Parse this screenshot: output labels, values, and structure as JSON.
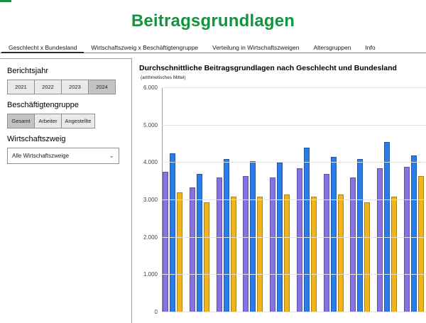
{
  "page": {
    "title": "Beitragsgrundlagen"
  },
  "colors": {
    "title_green": "#15933f",
    "selected_button_bg": "#c3c3c3",
    "series_purple": "#8672e0",
    "series_blue": "#2b7ce9",
    "series_yellow": "#f0b41e"
  },
  "tabs": {
    "items": [
      {
        "label": "Geschlecht x Bundesland",
        "active": true
      },
      {
        "label": "Wirtschaftszweig x Beschäftigtengruppe",
        "active": false
      },
      {
        "label": "Verteilung in Wirtschaftszweigen",
        "active": false
      },
      {
        "label": "Altersgruppen",
        "active": false
      },
      {
        "label": "Info",
        "active": false
      }
    ]
  },
  "sidebar": {
    "berichtsjahr": {
      "label": "Berichtsjahr",
      "options": [
        "2021",
        "2022",
        "2023",
        "2024"
      ],
      "selected": "2024"
    },
    "beschaeftigtengruppe": {
      "label": "Beschäftigtengruppe",
      "options": [
        "Gesamt",
        "Arbeiter",
        "Angestellte"
      ],
      "selected": "Gesamt"
    },
    "wirtschaftszweig": {
      "label": "Wirtschaftszweig",
      "selected": "Alle Wirtschaftszweige"
    }
  },
  "chart_data": {
    "type": "bar",
    "title": "Durchschnittliche Beitragsgrundlagen nach Geschlecht und Bundesland",
    "subtitle": "(arithmetisches Mittel)",
    "categories": [
      "",
      "",
      "",
      "",
      "",
      "",
      "",
      "",
      "",
      ""
    ],
    "series": [
      {
        "name": "purple",
        "color": "#8672e0",
        "values": [
          3750,
          3350,
          3600,
          3650,
          3600,
          3850,
          3700,
          3600,
          3850,
          3900
        ]
      },
      {
        "name": "blue",
        "color": "#2b7ce9",
        "values": [
          4250,
          3700,
          4100,
          4050,
          4000,
          4400,
          4150,
          4100,
          4550,
          4200
        ]
      },
      {
        "name": "yellow",
        "color": "#f0b41e",
        "values": [
          3200,
          2950,
          3100,
          3100,
          3150,
          3100,
          3150,
          2950,
          3100,
          3650
        ]
      }
    ],
    "ylim": [
      0,
      6000
    ],
    "yticks": [
      "6.000",
      "5.000",
      "4.000",
      "3.000",
      "2.000",
      "1.000",
      "0"
    ],
    "grid": true,
    "legend_visible": false,
    "x_axis_labels_visible": false
  }
}
